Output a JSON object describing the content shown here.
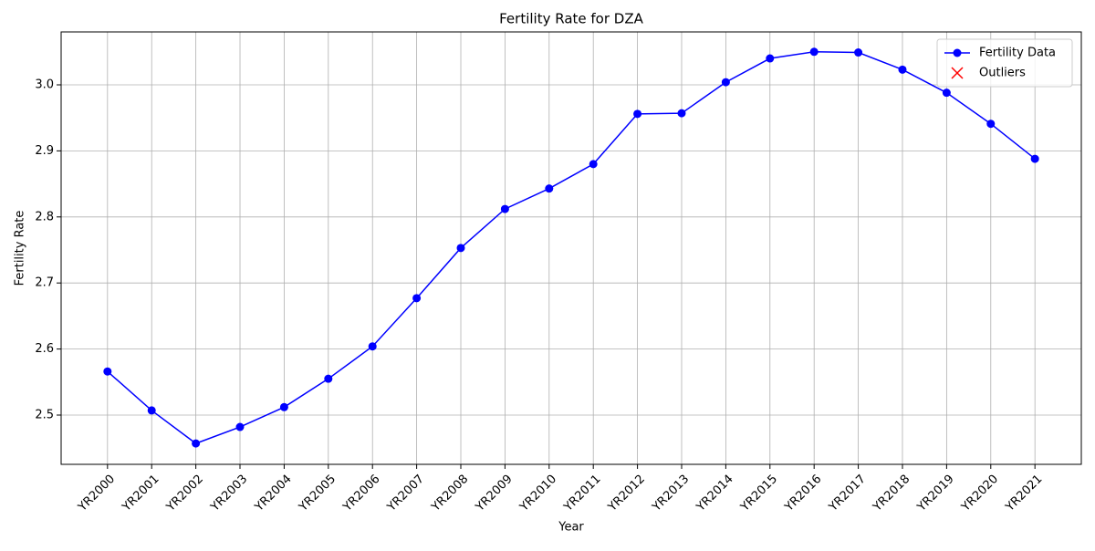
{
  "chart_data": {
    "type": "line",
    "title": "Fertility Rate for DZA",
    "x_label": "Year",
    "y_label": "Fertility Rate",
    "categories": [
      "YR2000",
      "YR2001",
      "YR2002",
      "YR2003",
      "YR2004",
      "YR2005",
      "YR2006",
      "YR2007",
      "YR2008",
      "YR2009",
      "YR2010",
      "YR2011",
      "YR2012",
      "YR2013",
      "YR2014",
      "YR2015",
      "YR2016",
      "YR2017",
      "YR2018",
      "YR2019",
      "YR2020",
      "YR2021"
    ],
    "series": [
      {
        "name": "Fertility Data",
        "color": "#0000ff",
        "marker": "circle",
        "values": [
          2.566,
          2.507,
          2.457,
          2.482,
          2.512,
          2.555,
          2.604,
          2.677,
          2.753,
          2.812,
          2.843,
          2.88,
          2.956,
          2.957,
          3.004,
          3.04,
          3.05,
          3.049,
          3.023,
          2.988,
          2.941,
          2.888
        ]
      },
      {
        "name": "Outliers",
        "color": "#ff0000",
        "marker": "x",
        "values": [
          null,
          null,
          null,
          null,
          null,
          null,
          null,
          null,
          null,
          null,
          null,
          null,
          null,
          null,
          null,
          null,
          null,
          null,
          null,
          null,
          null,
          null
        ]
      }
    ],
    "ylim": [
      2.4254,
      3.0801
    ],
    "yticks": [
      2.5,
      2.6,
      2.7,
      2.8,
      2.9,
      {
        "value": 3,
        "label": "3.0"
      }
    ],
    "grid": true,
    "legend": "upper right"
  }
}
